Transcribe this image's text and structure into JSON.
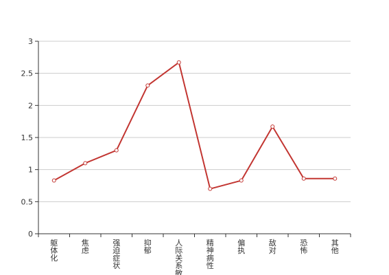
{
  "chart_data": {
    "type": "line",
    "categories": [
      "躯体化",
      "焦虑",
      "强迫症状",
      "抑郁",
      "人际关系敏感",
      "精神病性",
      "偏执",
      "敌对",
      "恐怖",
      "其他"
    ],
    "series": [
      {
        "values": [
          0.83,
          1.1,
          1.3,
          2.31,
          2.67,
          0.7,
          0.83,
          1.67,
          0.86,
          0.86
        ]
      }
    ],
    "ylim": [
      0,
      3
    ],
    "yticks": [
      "0",
      "0.5",
      "1",
      "1.5",
      "2",
      "2.5",
      "3"
    ],
    "grid": true,
    "colors": {
      "line": "#c23531",
      "grid": "#cccccc",
      "axis": "#333333"
    }
  }
}
